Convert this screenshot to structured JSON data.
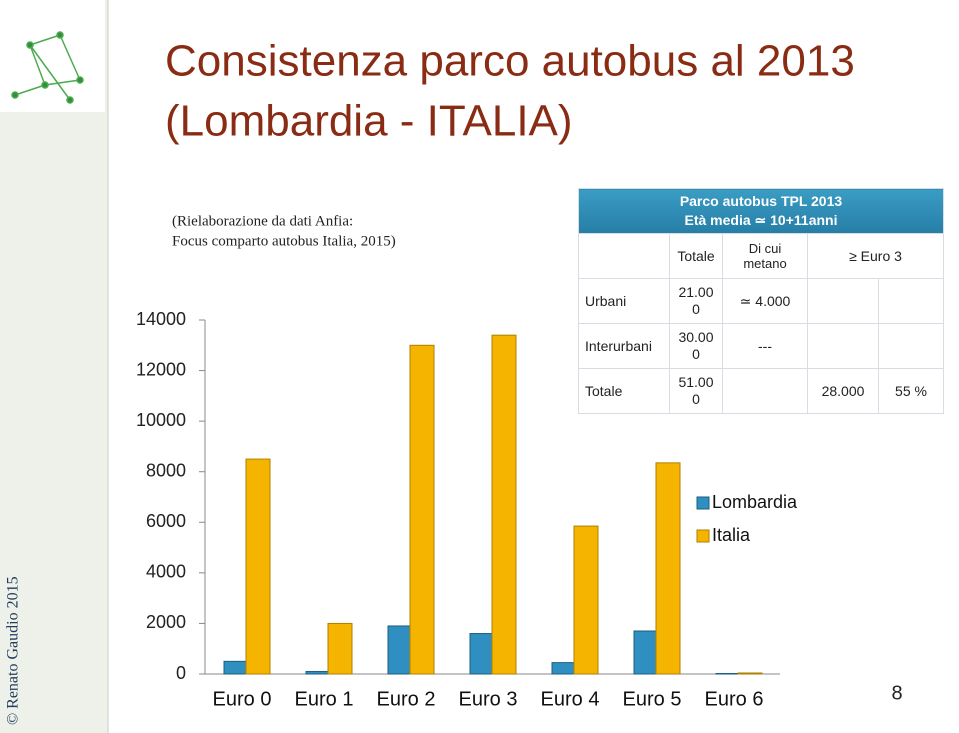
{
  "slide": {
    "title_line1": "Consistenza parco autobus al 2013",
    "title_line2": "(Lombardia - ITALIA)",
    "source_line1": "(Rielaborazione da dati Anfia:",
    "source_line2": "Focus comparto autobus Italia, 2015)",
    "copyright": "© Renato Gaudio 2015",
    "page_number": "8"
  },
  "table": {
    "title": "Parco autobus TPL 2013",
    "subtitle": "Età media ≃ 10+11anni",
    "columns": [
      "Totale",
      "Di cui metano",
      "≥ Euro 3"
    ],
    "rows": [
      {
        "label": "Urbani",
        "totale": "21.000",
        "metano": "≃ 4.000"
      },
      {
        "label": "Interurbani",
        "totale": "30.000",
        "metano": "---"
      },
      {
        "label": "Totale",
        "totale": "51.000",
        "euro3": "28.000",
        "percent": "55 %"
      }
    ]
  },
  "chart_data": {
    "type": "bar",
    "categories": [
      "Euro 0",
      "Euro 1",
      "Euro 2",
      "Euro 3",
      "Euro 4",
      "Euro 5",
      "Euro 6"
    ],
    "series": [
      {
        "name": "Lombardia",
        "color": "#2f8fc0",
        "values": [
          500,
          100,
          1900,
          1600,
          450,
          1700,
          20
        ]
      },
      {
        "name": "Italia",
        "color": "#f5b400",
        "values": [
          8500,
          2000,
          13000,
          13400,
          5850,
          8350,
          40
        ]
      }
    ],
    "ylim": [
      0,
      14000
    ],
    "yticks": [
      0,
      2000,
      4000,
      6000,
      8000,
      10000,
      12000,
      14000
    ],
    "grid": false
  }
}
